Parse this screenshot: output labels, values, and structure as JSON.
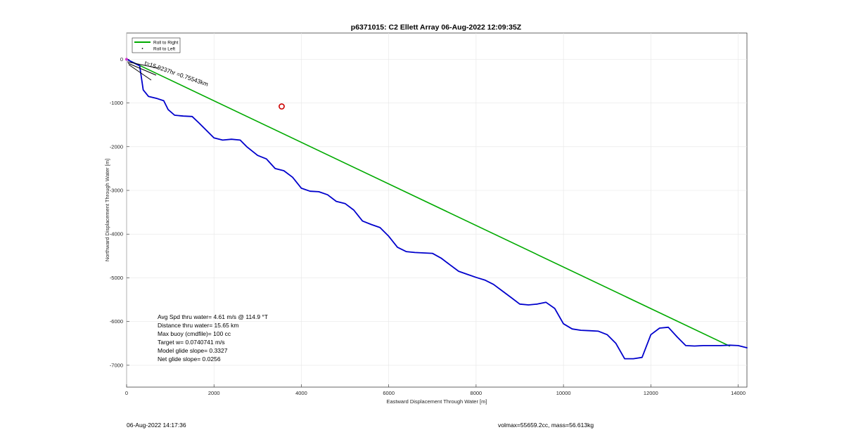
{
  "chart_data": {
    "type": "line",
    "title": "p6371015: C2 Ellett Array 06-Aug-2022 12:09:35Z",
    "xlabel": "Eastward Displacement Through Water [m]",
    "ylabel": "Northward Displacement Through Water [m]",
    "xlim": [
      0,
      14200
    ],
    "ylim": [
      -7500,
      600
    ],
    "x_ticks": [
      0,
      2000,
      4000,
      6000,
      8000,
      10000,
      12000,
      14000
    ],
    "y_ticks": [
      0,
      -1000,
      -2000,
      -3000,
      -4000,
      -5000,
      -6000,
      -7000
    ],
    "grid": true,
    "legend_placement": "top-left",
    "legend": [
      "Roll to Right",
      "Roll to Left"
    ],
    "series": [
      {
        "name": "Roll to Right",
        "color": "#00aa00",
        "x": [
          0,
          13800
        ],
        "y": [
          0,
          -6560
        ]
      },
      {
        "color": "#0000cc",
        "x": [
          0,
          300,
          380,
          500,
          700,
          850,
          950,
          1100,
          1300,
          1500,
          1650,
          1800,
          2000,
          2200,
          2400,
          2600,
          2750,
          3000,
          3200,
          3400,
          3600,
          3800,
          4000,
          4200,
          4400,
          4600,
          4800,
          5000,
          5200,
          5400,
          5600,
          5800,
          6000,
          6200,
          6400,
          6600,
          6800,
          7000,
          7200,
          7400,
          7600,
          7800,
          8000,
          8200,
          8400,
          8600,
          8800,
          9000,
          9200,
          9400,
          9600,
          9800,
          10000,
          10200,
          10400,
          10600,
          10800,
          11000,
          11200,
          11400,
          11600,
          11800,
          12000,
          12200,
          12400,
          12600,
          12800,
          13000,
          13200,
          13400,
          13600,
          13800,
          14000,
          14200
        ],
        "y": [
          0,
          -150,
          -700,
          -850,
          -900,
          -950,
          -1150,
          -1280,
          -1300,
          -1310,
          -1450,
          -1600,
          -1800,
          -1850,
          -1830,
          -1850,
          -2000,
          -2200,
          -2280,
          -2500,
          -2550,
          -2700,
          -2950,
          -3020,
          -3030,
          -3100,
          -3250,
          -3300,
          -3450,
          -3700,
          -3780,
          -3850,
          -4050,
          -4300,
          -4400,
          -4420,
          -4430,
          -4440,
          -4550,
          -4700,
          -4850,
          -4920,
          -4990,
          -5050,
          -5150,
          -5300,
          -5450,
          -5600,
          -5620,
          -5600,
          -5560,
          -5700,
          -6050,
          -6170,
          -6200,
          -6210,
          -6220,
          -6300,
          -6500,
          -6850,
          -6850,
          -6820,
          -6300,
          -6150,
          -6130,
          -6350,
          -6550,
          -6560,
          -6550,
          -6550,
          -6550,
          -6540,
          -6550,
          -6600
        ]
      }
    ],
    "marker": {
      "x": 3550,
      "y": -1080,
      "color": "#cc0000"
    },
    "annotation": "t=15.9237hr =0.75543km",
    "stats_lines": [
      "Avg Spd thru water=  4.61 m/s @ 114.9 °T",
      "Distance thru water= 15.65 km",
      "Max buoy (cmdfile)= 100 cc",
      "Target w= 0.0740741 m/s",
      "Model glide slope= 0.3327",
      "Net glide slope= 0.0256"
    ]
  },
  "footer": {
    "left": "06-Aug-2022 14:17:36",
    "right": "volmax=55659.2cc, mass=56.613kg"
  }
}
